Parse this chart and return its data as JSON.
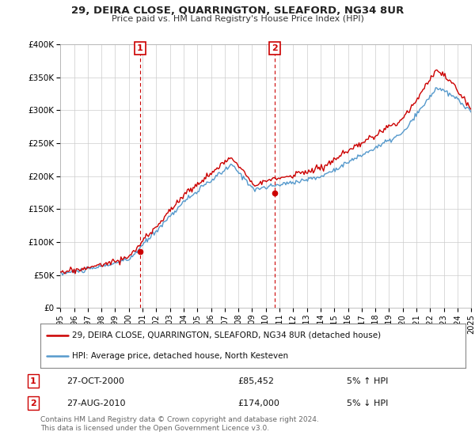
{
  "title": "29, DEIRA CLOSE, QUARRINGTON, SLEAFORD, NG34 8UR",
  "subtitle": "Price paid vs. HM Land Registry's House Price Index (HPI)",
  "ylim": [
    0,
    400000
  ],
  "yticks": [
    0,
    50000,
    100000,
    150000,
    200000,
    250000,
    300000,
    350000,
    400000
  ],
  "ytick_labels": [
    "£0",
    "£50K",
    "£100K",
    "£150K",
    "£200K",
    "£250K",
    "£300K",
    "£350K",
    "£400K"
  ],
  "xlim": [
    1995,
    2025
  ],
  "xticks": [
    1995,
    1996,
    1997,
    1998,
    1999,
    2000,
    2001,
    2002,
    2003,
    2004,
    2005,
    2006,
    2007,
    2008,
    2009,
    2010,
    2011,
    2012,
    2013,
    2014,
    2015,
    2016,
    2017,
    2018,
    2019,
    2020,
    2021,
    2022,
    2023,
    2024,
    2025
  ],
  "marker1_x": 2000.82,
  "marker1_y": 85452,
  "marker1_label": "1",
  "marker1_date": "27-OCT-2000",
  "marker1_price": "£85,452",
  "marker1_hpi": "5% ↑ HPI",
  "marker2_x": 2010.65,
  "marker2_y": 174000,
  "marker2_label": "2",
  "marker2_date": "27-AUG-2010",
  "marker2_price": "£174,000",
  "marker2_hpi": "5% ↓ HPI",
  "legend_line1": "29, DEIRA CLOSE, QUARRINGTON, SLEAFORD, NG34 8UR (detached house)",
  "legend_line2": "HPI: Average price, detached house, North Kesteven",
  "footer": "Contains HM Land Registry data © Crown copyright and database right 2024.\nThis data is licensed under the Open Government Licence v3.0.",
  "red_color": "#cc0000",
  "blue_color": "#5599cc",
  "bg_color": "#ffffff",
  "grid_color": "#cccccc"
}
